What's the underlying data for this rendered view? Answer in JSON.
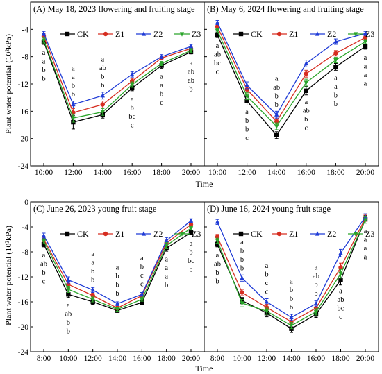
{
  "figure": {
    "y_axis_label": "Plant water potential (10²kPa)",
    "x_axis_label": "Time"
  },
  "colors": {
    "CK": "#000000",
    "Z1": "#d62d20",
    "Z2": "#1f3bd6",
    "Z3": "#2aa52a"
  },
  "chart_data": [
    {
      "type": "line",
      "title": "(A) May 18, 2023  flowering and fruiting stage",
      "categories": [
        "10:00",
        "12:00",
        "14:00",
        "16:00",
        "18:00",
        "20:00"
      ],
      "ylim": [
        -24,
        0
      ],
      "yticks": [
        -24,
        -20,
        -16,
        -12,
        -8,
        -4,
        0
      ],
      "ytick_labels": [
        "-24",
        "-20",
        "-16",
        "-12",
        "-8",
        "-4",
        ""
      ],
      "series": [
        {
          "name": "CK",
          "values": [
            -5.8,
            -17.6,
            -16.5,
            -12.6,
            -9.3,
            -7.3
          ],
          "err": [
            0.4,
            1.0,
            0.5,
            0.4,
            0.4,
            0.3
          ]
        },
        {
          "name": "Z1",
          "values": [
            -5.0,
            -16.2,
            -15.0,
            -11.6,
            -8.2,
            -6.8
          ],
          "err": [
            0.4,
            0.6,
            0.5,
            0.4,
            0.3,
            0.3
          ]
        },
        {
          "name": "Z2",
          "values": [
            -4.6,
            -15.0,
            -13.7,
            -10.6,
            -8.0,
            -6.5
          ],
          "err": [
            0.3,
            0.5,
            0.5,
            0.4,
            0.3,
            0.3
          ]
        },
        {
          "name": "Z3",
          "values": [
            -5.6,
            -17.0,
            -16.1,
            -12.1,
            -9.0,
            -7.1
          ],
          "err": [
            0.4,
            0.6,
            0.5,
            0.4,
            0.3,
            0.3
          ]
        }
      ],
      "sig_letters": [
        [
          "a",
          "a",
          "b",
          "b"
        ],
        [
          "a",
          "a",
          "b",
          "b"
        ],
        [
          "a",
          "ab",
          "b",
          "b"
        ],
        [
          "a",
          "b",
          "bc",
          "c"
        ],
        [
          "a",
          "a",
          "b",
          "c"
        ],
        [
          "a",
          "ab",
          "ab",
          "b"
        ]
      ]
    },
    {
      "type": "line",
      "title": "(B) May 6, 2024  flowering and fruiting stage",
      "categories": [
        "10:00",
        "12:00",
        "14:00",
        "16:00",
        "18:00",
        "20:00"
      ],
      "ylim": [
        -24,
        0
      ],
      "yticks": [
        -24,
        -20,
        -16,
        -12,
        -8,
        -4,
        0
      ],
      "ytick_labels": [],
      "series": [
        {
          "name": "CK",
          "values": [
            -4.8,
            -14.5,
            -19.5,
            -13.0,
            -9.5,
            -6.5
          ],
          "err": [
            0.4,
            0.6,
            0.5,
            0.6,
            0.5,
            0.4
          ]
        },
        {
          "name": "Z1",
          "values": [
            -3.6,
            -12.8,
            -17.5,
            -10.5,
            -7.5,
            -5.2
          ],
          "err": [
            0.3,
            0.5,
            0.5,
            0.5,
            0.4,
            0.3
          ]
        },
        {
          "name": "Z2",
          "values": [
            -3.0,
            -12.2,
            -16.5,
            -9.0,
            -5.8,
            -4.6
          ],
          "err": [
            0.3,
            0.5,
            0.5,
            0.5,
            0.4,
            0.3
          ]
        },
        {
          "name": "Z3",
          "values": [
            -4.2,
            -13.8,
            -18.2,
            -11.8,
            -8.5,
            -5.8
          ],
          "err": [
            0.3,
            0.5,
            0.5,
            0.5,
            0.4,
            0.3
          ]
        }
      ],
      "sig_letters": [
        [
          "a",
          "ab",
          "bc",
          "c"
        ],
        [
          "a",
          "b",
          "b",
          "c"
        ],
        [
          "a",
          "ab",
          "b",
          "b"
        ],
        [
          "a",
          "ab",
          "b",
          "c"
        ],
        [
          "a",
          "a",
          "b",
          "b"
        ],
        [
          "a",
          "a",
          "a",
          "a"
        ]
      ]
    },
    {
      "type": "line",
      "title": "(C) June 26, 2023  young fruit stage",
      "categories": [
        "8:00",
        "10:00",
        "12:00",
        "14:00",
        "16:00",
        "18:00",
        "20:00"
      ],
      "ylim": [
        -24,
        0
      ],
      "yticks": [
        -24,
        -20,
        -16,
        -12,
        -8,
        -4,
        0
      ],
      "ytick_labels": [
        "-24",
        "-20",
        "-16",
        "-12",
        "-8",
        "-4",
        "0"
      ],
      "series": [
        {
          "name": "CK",
          "values": [
            -6.8,
            -14.8,
            -16.0,
            -17.4,
            -16.1,
            -7.4,
            -4.9
          ],
          "err": [
            0.4,
            0.5,
            0.4,
            0.3,
            0.3,
            0.5,
            0.3
          ]
        },
        {
          "name": "Z1",
          "values": [
            -6.0,
            -13.2,
            -15.0,
            -17.0,
            -15.0,
            -6.6,
            -3.6
          ],
          "err": [
            0.4,
            0.5,
            0.4,
            0.3,
            0.3,
            0.5,
            0.3
          ]
        },
        {
          "name": "Z2",
          "values": [
            -5.4,
            -12.5,
            -14.1,
            -16.3,
            -14.8,
            -6.2,
            -3.0
          ],
          "err": [
            0.4,
            0.5,
            0.4,
            0.3,
            0.3,
            0.5,
            0.3
          ]
        },
        {
          "name": "Z3",
          "values": [
            -6.3,
            -14.0,
            -15.6,
            -17.2,
            -15.6,
            -7.0,
            -4.2
          ],
          "err": [
            0.4,
            0.5,
            0.4,
            0.3,
            0.3,
            0.5,
            0.3
          ]
        }
      ],
      "sig_letters": [
        [
          "a",
          "ab",
          "b",
          "c"
        ],
        [
          "a",
          "ab",
          "b",
          "b"
        ],
        [
          "a",
          "a",
          "b",
          "b"
        ],
        [
          "a",
          "b",
          "b",
          "b"
        ],
        [
          "a",
          "b",
          "c",
          "c"
        ],
        [
          "a",
          "a",
          "a",
          "b"
        ],
        [
          "a",
          "b",
          "bc",
          "c"
        ]
      ]
    },
    {
      "type": "line",
      "title": "(D) June 16, 2024  young fruit stage",
      "categories": [
        "8:00",
        "10:00",
        "12:00",
        "14:00",
        "16:00",
        "18:00",
        "20:00"
      ],
      "ylim": [
        -24,
        0
      ],
      "yticks": [
        -24,
        -20,
        -16,
        -12,
        -8,
        -4,
        0
      ],
      "ytick_labels": [],
      "series": [
        {
          "name": "CK",
          "values": [
            -6.8,
            -15.8,
            -17.8,
            -20.3,
            -18.0,
            -12.5,
            -2.8
          ],
          "err": [
            0.4,
            0.5,
            0.6,
            0.6,
            0.5,
            0.8,
            0.6
          ]
        },
        {
          "name": "Z1",
          "values": [
            -5.6,
            -14.5,
            -16.9,
            -19.2,
            -17.0,
            -10.5,
            -2.6
          ],
          "err": [
            0.4,
            0.5,
            0.5,
            0.5,
            0.5,
            0.7,
            0.5
          ]
        },
        {
          "name": "Z2",
          "values": [
            -3.2,
            -12.2,
            -16.0,
            -18.5,
            -16.3,
            -8.2,
            -2.4
          ],
          "err": [
            0.4,
            0.5,
            0.5,
            0.5,
            0.5,
            0.6,
            0.5
          ]
        },
        {
          "name": "Z3",
          "values": [
            -6.2,
            -16.2,
            -17.5,
            -19.8,
            -17.6,
            -11.5,
            -2.9
          ],
          "err": [
            0.4,
            0.6,
            0.5,
            0.5,
            0.5,
            0.7,
            0.5
          ]
        }
      ],
      "sig_letters": [
        [
          "a",
          "ab",
          "b",
          "b"
        ],
        [
          "a",
          "b",
          "b",
          "b"
        ],
        [
          "a",
          "b",
          "c",
          "c"
        ],
        [
          "a",
          "b",
          "b",
          "b"
        ],
        [
          "a",
          "ab",
          "b",
          "b"
        ],
        [
          "a",
          "ab",
          "bc",
          "c"
        ],
        [
          "a",
          "a",
          "a",
          "a"
        ]
      ]
    }
  ]
}
